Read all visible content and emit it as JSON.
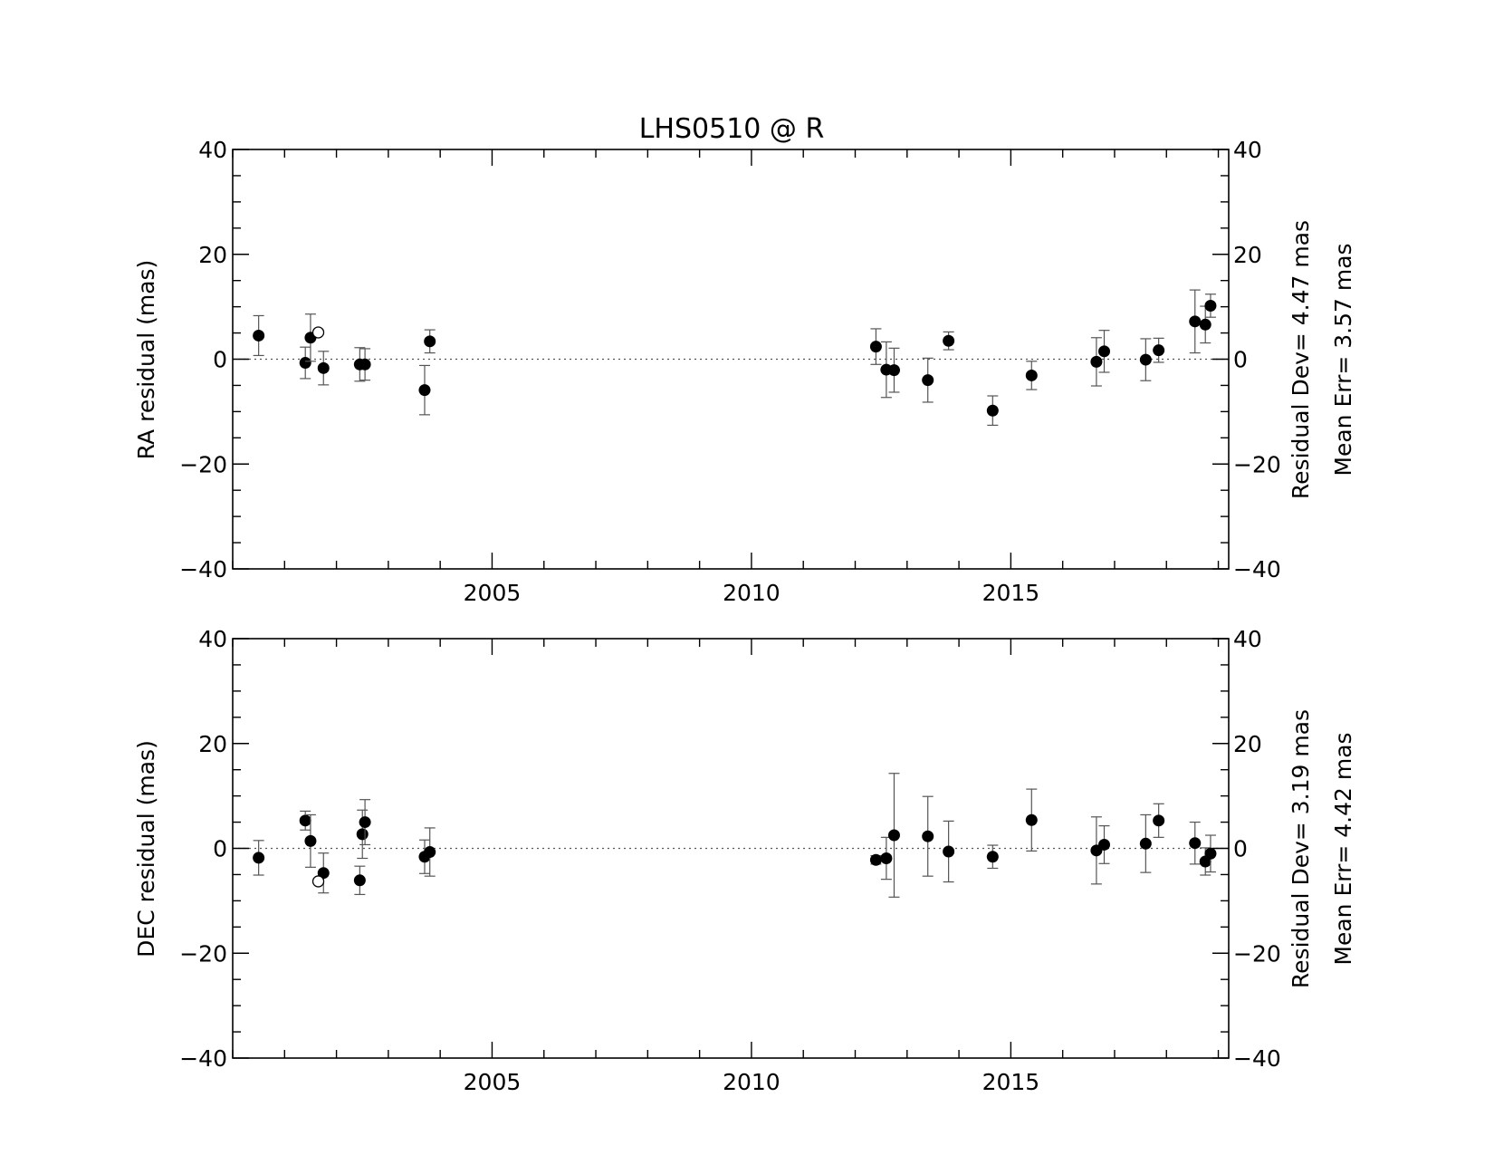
{
  "chart_data": [
    {
      "type": "scatter",
      "title": "LHS0510 @ R",
      "ylabel": "RA residual (mas)",
      "xlim": [
        2000.0,
        2019.2
      ],
      "ylim": [
        -40,
        40
      ],
      "x_ticks": [
        2005,
        2010,
        2015
      ],
      "y_ticks": [
        -40,
        -20,
        0,
        20,
        40
      ],
      "zero_line": true,
      "stats": [
        "Residual Dev=   4.47  mas",
        "Mean  Err=  3.57  mas"
      ],
      "points": [
        {
          "x": 2000.5,
          "y": 4.5,
          "err": 3.8
        },
        {
          "x": 2001.4,
          "y": -0.7,
          "err": 3.0
        },
        {
          "x": 2001.5,
          "y": 4.1,
          "err": 4.5
        },
        {
          "x": 2001.75,
          "y": -1.7,
          "err": 3.2
        },
        {
          "x": 2002.45,
          "y": -1.0,
          "err": 3.2
        },
        {
          "x": 2002.55,
          "y": -1.0,
          "err": 3.0
        },
        {
          "x": 2003.7,
          "y": -5.9,
          "err": 4.7
        },
        {
          "x": 2003.8,
          "y": 3.4,
          "err": 2.2
        },
        {
          "x": 2012.4,
          "y": 2.4,
          "err": 3.4
        },
        {
          "x": 2012.6,
          "y": -2.0,
          "err": 5.3
        },
        {
          "x": 2012.75,
          "y": -2.1,
          "err": 4.2
        },
        {
          "x": 2013.4,
          "y": -4.0,
          "err": 4.2
        },
        {
          "x": 2013.8,
          "y": 3.5,
          "err": 1.7
        },
        {
          "x": 2014.65,
          "y": -9.8,
          "err": 2.8
        },
        {
          "x": 2015.4,
          "y": -3.1,
          "err": 2.7
        },
        {
          "x": 2016.65,
          "y": -0.5,
          "err": 4.6
        },
        {
          "x": 2016.8,
          "y": 1.5,
          "err": 4.0
        },
        {
          "x": 2017.6,
          "y": -0.1,
          "err": 4.0
        },
        {
          "x": 2017.85,
          "y": 1.7,
          "err": 2.3
        },
        {
          "x": 2018.55,
          "y": 7.2,
          "err": 6.0
        },
        {
          "x": 2018.75,
          "y": 6.6,
          "err": 3.5
        },
        {
          "x": 2018.85,
          "y": 10.2,
          "err": 2.2
        }
      ],
      "open_points": [
        {
          "x": 2001.65,
          "y": 5.1
        }
      ]
    },
    {
      "type": "scatter",
      "ylabel": "DEC residual (mas)",
      "xlim": [
        2000.0,
        2019.2
      ],
      "ylim": [
        -40,
        40
      ],
      "x_ticks": [
        2005,
        2010,
        2015
      ],
      "y_ticks": [
        -40,
        -20,
        0,
        20,
        40
      ],
      "zero_line": true,
      "stats": [
        "Residual Dev=   3.19  mas",
        "Mean  Err=  4.42  mas"
      ],
      "points": [
        {
          "x": 2000.5,
          "y": -1.8,
          "err": 3.3
        },
        {
          "x": 2001.4,
          "y": 5.3,
          "err": 1.8
        },
        {
          "x": 2001.5,
          "y": 1.4,
          "err": 5.0
        },
        {
          "x": 2001.75,
          "y": -4.7,
          "err": 3.8
        },
        {
          "x": 2002.45,
          "y": -6.1,
          "err": 2.7
        },
        {
          "x": 2002.5,
          "y": 2.7,
          "err": 4.6
        },
        {
          "x": 2002.55,
          "y": 5.0,
          "err": 4.3
        },
        {
          "x": 2003.7,
          "y": -1.6,
          "err": 3.2
        },
        {
          "x": 2003.8,
          "y": -0.7,
          "err": 4.6
        },
        {
          "x": 2012.4,
          "y": -2.2,
          "err": 0.8
        },
        {
          "x": 2012.6,
          "y": -1.9,
          "err": 4.0
        },
        {
          "x": 2012.75,
          "y": 2.5,
          "err": 11.8
        },
        {
          "x": 2013.4,
          "y": 2.3,
          "err": 7.6
        },
        {
          "x": 2013.8,
          "y": -0.6,
          "err": 5.8
        },
        {
          "x": 2014.65,
          "y": -1.6,
          "err": 2.2
        },
        {
          "x": 2015.4,
          "y": 5.4,
          "err": 5.9
        },
        {
          "x": 2016.65,
          "y": -0.4,
          "err": 6.4
        },
        {
          "x": 2016.8,
          "y": 0.7,
          "err": 3.6
        },
        {
          "x": 2017.6,
          "y": 0.9,
          "err": 5.5
        },
        {
          "x": 2017.85,
          "y": 5.3,
          "err": 3.2
        },
        {
          "x": 2018.55,
          "y": 1.0,
          "err": 4.0
        },
        {
          "x": 2018.75,
          "y": -2.5,
          "err": 2.6
        },
        {
          "x": 2018.85,
          "y": -1.0,
          "err": 3.5
        }
      ],
      "open_points": [
        {
          "x": 2001.65,
          "y": -6.3
        }
      ]
    }
  ]
}
